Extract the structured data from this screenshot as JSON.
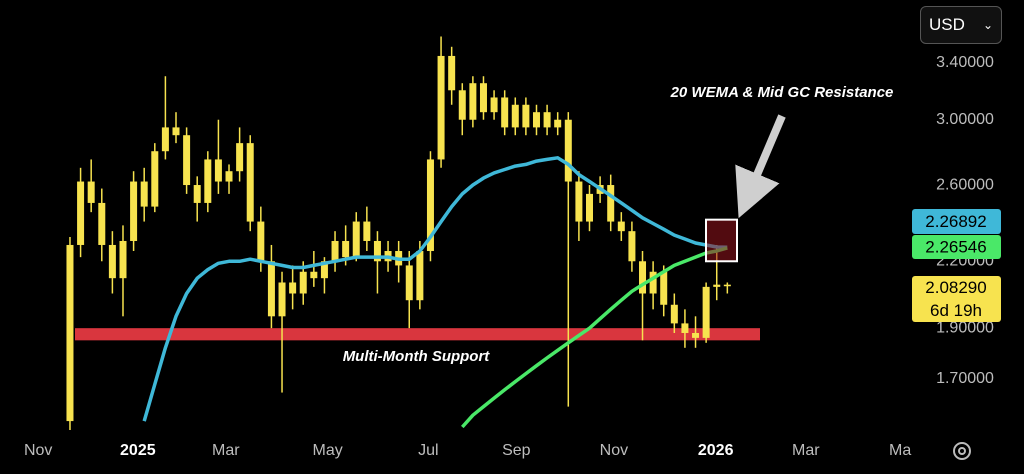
{
  "chart_data": {
    "type": "candlestick",
    "log_scale": true,
    "candles": {
      "color": "#f7e34f",
      "open": [
        1.55,
        2.28,
        2.62,
        2.5,
        2.28,
        2.12,
        2.3,
        2.62,
        2.48,
        2.8,
        2.95,
        2.9,
        2.6,
        2.5,
        2.75,
        2.62,
        2.68,
        2.85,
        2.4,
        2.2,
        1.95,
        2.1,
        2.05,
        2.15,
        2.12,
        2.2,
        2.3,
        2.22,
        2.4,
        2.3,
        2.2,
        2.25,
        2.18,
        2.02,
        2.25,
        2.75,
        3.45,
        3.2,
        3.0,
        3.25,
        3.05,
        3.15,
        2.95,
        3.1,
        2.95,
        3.05,
        2.95,
        3.0,
        2.62,
        2.4,
        2.55,
        2.6,
        2.4,
        2.35,
        2.2,
        2.05,
        2.15,
        2.0,
        1.92,
        1.88,
        1.86,
        2.08,
        2.09
      ],
      "high": [
        2.32,
        2.7,
        2.75,
        2.58,
        2.35,
        2.38,
        2.68,
        2.7,
        2.85,
        3.3,
        3.05,
        2.95,
        2.65,
        2.8,
        3.0,
        2.72,
        2.95,
        2.9,
        2.48,
        2.28,
        2.15,
        2.18,
        2.2,
        2.25,
        2.22,
        2.35,
        2.38,
        2.45,
        2.48,
        2.35,
        2.3,
        2.3,
        2.25,
        2.3,
        2.8,
        3.6,
        3.52,
        3.25,
        3.3,
        3.3,
        3.2,
        3.2,
        3.15,
        3.15,
        3.1,
        3.1,
        3.05,
        3.05,
        2.68,
        2.6,
        2.65,
        2.66,
        2.45,
        2.4,
        2.25,
        2.2,
        2.18,
        2.05,
        1.98,
        1.95,
        2.1,
        2.28,
        2.1
      ],
      "low": [
        1.52,
        2.22,
        2.45,
        2.2,
        2.05,
        1.95,
        2.25,
        2.4,
        2.45,
        2.75,
        2.85,
        2.55,
        2.4,
        2.45,
        2.55,
        2.55,
        2.62,
        2.35,
        2.15,
        1.9,
        1.65,
        1.98,
        2.0,
        2.08,
        2.05,
        2.15,
        2.18,
        2.2,
        2.25,
        2.05,
        2.15,
        2.1,
        1.9,
        1.98,
        2.2,
        2.7,
        3.1,
        2.9,
        2.95,
        3.0,
        3.0,
        2.9,
        2.9,
        2.9,
        2.9,
        2.9,
        2.9,
        1.6,
        2.3,
        2.35,
        2.5,
        2.35,
        2.3,
        2.15,
        1.85,
        1.98,
        1.95,
        1.88,
        1.82,
        1.82,
        1.84,
        2.02,
        2.05
      ],
      "close": [
        2.28,
        2.62,
        2.5,
        2.28,
        2.12,
        2.3,
        2.62,
        2.48,
        2.8,
        2.95,
        2.9,
        2.6,
        2.5,
        2.75,
        2.62,
        2.68,
        2.85,
        2.4,
        2.2,
        1.95,
        2.1,
        2.05,
        2.15,
        2.12,
        2.2,
        2.3,
        2.22,
        2.4,
        2.3,
        2.2,
        2.25,
        2.18,
        2.02,
        2.25,
        2.75,
        3.45,
        3.2,
        3.0,
        3.25,
        3.05,
        3.15,
        2.95,
        3.1,
        2.95,
        3.05,
        2.95,
        3.0,
        2.62,
        2.4,
        2.55,
        2.6,
        2.4,
        2.35,
        2.2,
        2.05,
        2.15,
        2.0,
        1.92,
        1.88,
        1.86,
        2.08,
        2.09,
        2.0829
      ],
      "last_label": "2.08290",
      "countdown": "6d 19h"
    },
    "series": [
      {
        "color": "#3fb8d8",
        "last_label": "2.26892",
        "values": [
          null,
          null,
          null,
          null,
          null,
          null,
          null,
          1.55,
          1.68,
          1.82,
          1.95,
          2.05,
          2.12,
          2.16,
          2.19,
          2.2,
          2.2,
          2.21,
          2.2,
          2.19,
          2.18,
          2.17,
          2.17,
          2.18,
          2.19,
          2.2,
          2.21,
          2.22,
          2.22,
          2.22,
          2.22,
          2.21,
          2.21,
          2.25,
          2.32,
          2.4,
          2.48,
          2.55,
          2.6,
          2.64,
          2.67,
          2.69,
          2.71,
          2.72,
          2.74,
          2.75,
          2.76,
          2.72,
          2.66,
          2.62,
          2.58,
          2.54,
          2.5,
          2.46,
          2.42,
          2.39,
          2.36,
          2.33,
          2.31,
          2.29,
          2.28,
          2.27,
          2.26892
        ]
      },
      {
        "color": "#4ae868",
        "last_label": "2.26546",
        "values": [
          null,
          null,
          null,
          null,
          null,
          null,
          null,
          null,
          null,
          null,
          null,
          null,
          null,
          null,
          null,
          null,
          null,
          null,
          null,
          null,
          null,
          null,
          null,
          null,
          null,
          null,
          null,
          null,
          null,
          null,
          null,
          null,
          null,
          null,
          null,
          null,
          null,
          1.53,
          1.57,
          1.6,
          1.63,
          1.66,
          1.69,
          1.72,
          1.75,
          1.78,
          1.81,
          1.84,
          1.87,
          1.9,
          1.94,
          1.98,
          2.02,
          2.06,
          2.09,
          2.12,
          2.15,
          2.18,
          2.2,
          2.22,
          2.24,
          2.25,
          2.26546
        ]
      }
    ],
    "ylim": [
      1.52,
      3.9
    ],
    "yticks": [
      {
        "value": 1.7,
        "label": "1.70000"
      },
      {
        "value": 1.9,
        "label": "1.90000"
      },
      {
        "value": 2.2,
        "label": "2.20000"
      },
      {
        "value": 2.6,
        "label": "2.60000"
      },
      {
        "value": 3.0,
        "label": "3.00000"
      },
      {
        "value": 3.4,
        "label": "3.40000"
      }
    ],
    "xlim": [
      -6.6,
      79.7
    ],
    "xticks": [
      {
        "value": -3.0,
        "label": "Nov"
      },
      {
        "value": 6.4,
        "label": "2025"
      },
      {
        "value": 14.7,
        "label": "Mar"
      },
      {
        "value": 24.3,
        "label": "May"
      },
      {
        "value": 33.8,
        "label": "Jul"
      },
      {
        "value": 42.1,
        "label": "Sep"
      },
      {
        "value": 51.3,
        "label": "Nov"
      },
      {
        "value": 60.9,
        "label": "2026"
      },
      {
        "value": 69.4,
        "label": "Mar"
      },
      {
        "value": 78.3,
        "label": "Ma"
      }
    ],
    "support_zone": {
      "range": [
        1.85,
        1.9
      ],
      "label": "Multi-Month Support",
      "color": "#d9363e"
    },
    "resistance_box": {
      "range": [
        2.2,
        2.41
      ],
      "label": "20 WEMA & Mid GC Resistance"
    },
    "currency": "USD"
  }
}
